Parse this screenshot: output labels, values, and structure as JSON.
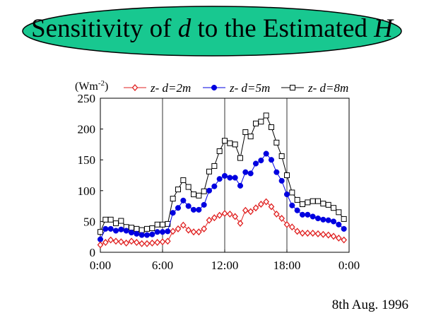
{
  "title": {
    "prefix": "Sensitivity of ",
    "var1": "d",
    "middle": " to the Estimated ",
    "var2": "H"
  },
  "date_caption": "8th Aug. 1996",
  "colors": {
    "title_fill": "#18c890",
    "series_red": "#e02020",
    "series_blue": "#0000e0",
    "series_black": "#000000"
  },
  "chart_data": {
    "type": "line",
    "ylabel": "(Wm-2)",
    "ylim": [
      0,
      250
    ],
    "yticks": [
      0,
      50,
      100,
      150,
      200,
      250
    ],
    "xlim": [
      0,
      24
    ],
    "xticks": [
      "0:00",
      "6:00",
      "12:00",
      "18:00",
      "0:00"
    ],
    "x_vertical_gridlines": [
      6,
      12,
      18
    ],
    "legend_placement": "top",
    "x_hours": [
      0,
      0.5,
      1,
      1.5,
      2,
      2.5,
      3,
      3.5,
      4,
      4.5,
      5,
      5.5,
      6,
      6.5,
      7,
      7.5,
      8,
      8.5,
      9,
      9.5,
      10,
      10.5,
      11,
      11.5,
      12,
      12.5,
      13,
      13.5,
      14,
      14.5,
      15,
      15.5,
      16,
      16.5,
      17,
      17.5,
      18,
      18.5,
      19,
      19.5,
      20,
      20.5,
      21,
      21.5,
      22,
      22.5,
      23,
      23.5
    ],
    "series": [
      {
        "name": "z- d=2m",
        "marker": "diamond",
        "color": "#e02020",
        "values": [
          12,
          16,
          20,
          18,
          17,
          15,
          18,
          16,
          14,
          14,
          15,
          16,
          17,
          18,
          34,
          38,
          44,
          36,
          33,
          33,
          38,
          52,
          56,
          60,
          63,
          62,
          58,
          47,
          68,
          66,
          72,
          78,
          82,
          74,
          62,
          55,
          45,
          41,
          34,
          31,
          31,
          31,
          30,
          29,
          28,
          26,
          23,
          20
        ]
      },
      {
        "name": "z- d=5m",
        "marker": "circle",
        "color": "#0000e0",
        "values": [
          21,
          38,
          38,
          35,
          37,
          35,
          32,
          30,
          28,
          28,
          29,
          33,
          33,
          34,
          64,
          72,
          84,
          75,
          69,
          69,
          77,
          100,
          107,
          119,
          124,
          121,
          121,
          108,
          130,
          128,
          144,
          149,
          160,
          150,
          130,
          116,
          94,
          76,
          68,
          61,
          61,
          58,
          55,
          53,
          52,
          50,
          45,
          38
        ]
      },
      {
        "name": "z- d=8m",
        "marker": "square",
        "color": "#000000",
        "values": [
          33,
          53,
          53,
          47,
          51,
          41,
          40,
          38,
          36,
          38,
          39,
          45,
          45,
          46,
          87,
          102,
          117,
          106,
          94,
          92,
          99,
          131,
          140,
          164,
          181,
          177,
          175,
          153,
          195,
          188,
          209,
          212,
          222,
          203,
          178,
          156,
          125,
          97,
          85,
          78,
          81,
          83,
          83,
          79,
          77,
          72,
          65,
          54
        ]
      }
    ]
  }
}
